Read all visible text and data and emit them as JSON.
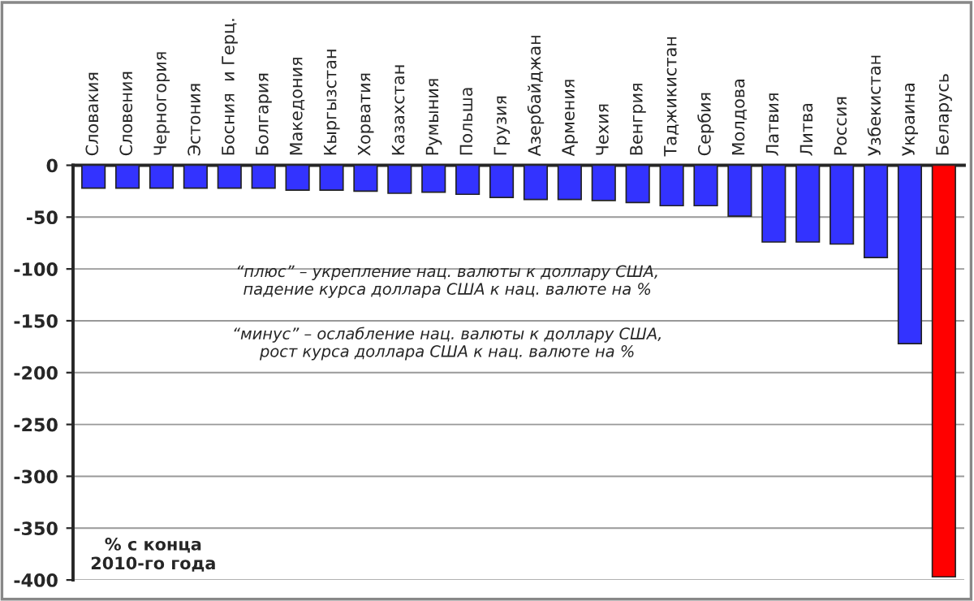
{
  "chart_data": {
    "type": "bar",
    "categories": [
      "Словакия",
      "Словения",
      "Черногория",
      "Эстония",
      "Босния  и Герц.",
      "Болгария",
      "Македония",
      "Кыргызстан",
      "Хорватия",
      "Казахстан",
      "Румыния",
      "Польша",
      "Грузия",
      "Азербайджан",
      "Армения",
      "Чехия",
      "Венгрия",
      "Таджикистан",
      "Сербия",
      "Молдова",
      "Латвия",
      "Литва",
      "Россия",
      "Узбекистан",
      "Украина",
      "Беларусь"
    ],
    "values": [
      -22,
      -22,
      -22,
      -22,
      -22,
      -22,
      -24,
      -24,
      -25,
      -27,
      -26,
      -28,
      -31,
      -33,
      -33,
      -34,
      -36,
      -39,
      -39,
      -49,
      -74,
      -74,
      -76,
      -89,
      -172,
      -397
    ],
    "colors": [
      "#3333ff",
      "#3333ff",
      "#3333ff",
      "#3333ff",
      "#3333ff",
      "#3333ff",
      "#3333ff",
      "#3333ff",
      "#3333ff",
      "#3333ff",
      "#3333ff",
      "#3333ff",
      "#3333ff",
      "#3333ff",
      "#3333ff",
      "#3333ff",
      "#3333ff",
      "#3333ff",
      "#3333ff",
      "#3333ff",
      "#3333ff",
      "#3333ff",
      "#3333ff",
      "#3333ff",
      "#3333ff",
      "#ff0000"
    ],
    "ylim": [
      -400,
      0
    ],
    "yticks": [
      -400,
      -350,
      -300,
      -250,
      -200,
      -150,
      -100,
      -50,
      0
    ],
    "grid": "y",
    "legend": false,
    "annotations": [
      "“плюс” – укрепление нац. валюты к доллару США,\nпадение курса доллара США к нац. валюте на %",
      "“минус” – ослабление нац. валюты к доллару США,\nрост курса доллара США к нац. валюте на %",
      "% с конца\n2010-го года"
    ]
  }
}
